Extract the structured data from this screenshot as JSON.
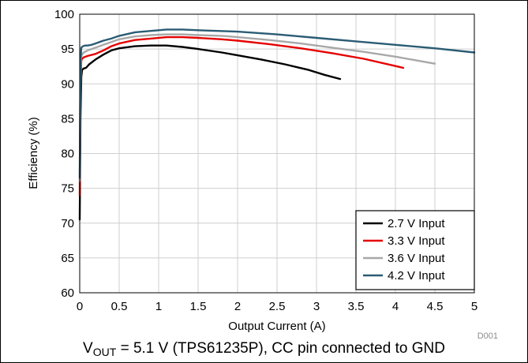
{
  "chart_data": {
    "type": "line",
    "xlabel": "Output Current (A)",
    "ylabel": "Efficiency (%)",
    "xlim": [
      0,
      5
    ],
    "ylim": [
      60,
      100
    ],
    "x_ticks": [
      "0",
      "0.5",
      "1",
      "1.5",
      "2",
      "2.5",
      "3",
      "3.5",
      "4",
      "4.5",
      "5"
    ],
    "y_ticks": [
      "60",
      "65",
      "70",
      "75",
      "80",
      "85",
      "90",
      "95",
      "100"
    ],
    "grid": true,
    "legend_position": "bottom-right",
    "figure_code": "D001",
    "series": [
      {
        "name": "2.7 V Input",
        "color": "#000000",
        "x": [
          0.0,
          0.01,
          0.02,
          0.03,
          0.05,
          0.08,
          0.12,
          0.2,
          0.3,
          0.4,
          0.5,
          0.7,
          0.9,
          1.1,
          1.3,
          1.5,
          1.8,
          2.0,
          2.3,
          2.6,
          2.9,
          3.1,
          3.3
        ],
        "y": [
          70.5,
          85.0,
          91.0,
          92.0,
          92.2,
          92.3,
          92.8,
          93.5,
          94.2,
          94.8,
          95.1,
          95.4,
          95.5,
          95.5,
          95.3,
          95.0,
          94.5,
          94.1,
          93.5,
          92.8,
          92.0,
          91.3,
          90.7
        ]
      },
      {
        "name": "3.3 V Input",
        "color": "#e60000",
        "x": [
          0.0,
          0.01,
          0.02,
          0.03,
          0.05,
          0.1,
          0.2,
          0.3,
          0.4,
          0.5,
          0.7,
          0.9,
          1.1,
          1.3,
          1.5,
          1.8,
          2.0,
          2.4,
          2.8,
          3.2,
          3.6,
          4.1
        ],
        "y": [
          74.0,
          90.0,
          93.3,
          93.6,
          93.8,
          94.0,
          94.3,
          94.8,
          95.4,
          95.8,
          96.3,
          96.5,
          96.7,
          96.7,
          96.6,
          96.4,
          96.2,
          95.7,
          95.1,
          94.4,
          93.6,
          92.3
        ]
      },
      {
        "name": "3.6 V Input",
        "color": "#a8a8a8",
        "x": [
          0.0,
          0.01,
          0.02,
          0.03,
          0.05,
          0.1,
          0.2,
          0.3,
          0.4,
          0.5,
          0.7,
          0.9,
          1.1,
          1.3,
          1.5,
          1.8,
          2.0,
          2.4,
          2.8,
          3.2,
          3.6,
          4.0,
          4.5
        ],
        "y": [
          76.0,
          92.0,
          94.0,
          94.2,
          94.5,
          94.8,
          95.2,
          95.6,
          96.0,
          96.4,
          96.8,
          97.0,
          97.1,
          97.1,
          97.0,
          96.9,
          96.7,
          96.3,
          95.8,
          95.2,
          94.6,
          93.9,
          92.9
        ]
      },
      {
        "name": "4.2 V Input",
        "color": "#2a5c74",
        "x": [
          0.0,
          0.01,
          0.02,
          0.04,
          0.07,
          0.1,
          0.15,
          0.2,
          0.3,
          0.4,
          0.5,
          0.7,
          0.9,
          1.1,
          1.3,
          1.5,
          2.0,
          2.5,
          3.0,
          3.5,
          4.0,
          4.5,
          5.0
        ],
        "y": [
          76.5,
          93.0,
          95.2,
          95.4,
          95.5,
          95.5,
          95.6,
          95.8,
          96.2,
          96.5,
          96.9,
          97.4,
          97.6,
          97.8,
          97.8,
          97.7,
          97.5,
          97.1,
          96.6,
          96.1,
          95.6,
          95.1,
          94.5
        ]
      }
    ]
  },
  "caption": {
    "v": "V",
    "sub": "OUT",
    "rest": " = 5.1 V (TPS61235P), CC pin connected to GND"
  }
}
